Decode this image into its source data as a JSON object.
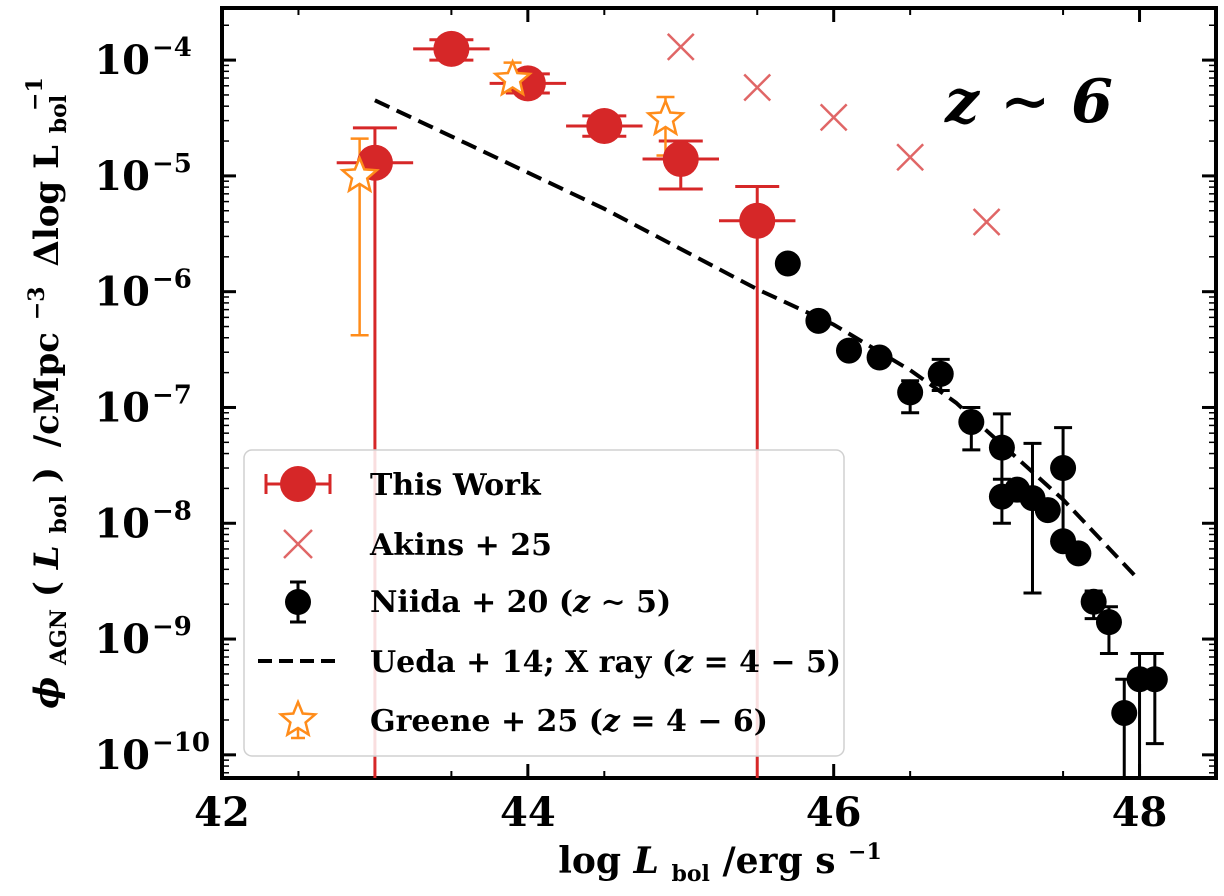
{
  "chart_data": {
    "type": "scatter",
    "xscale": "linear",
    "yscale": "log",
    "xlim": [
      42,
      48.5
    ],
    "ylim_log10": [
      -10.2,
      -3.55
    ],
    "x_ticks": [
      "42",
      "44",
      "46",
      "48"
    ],
    "x_tick_values": [
      42,
      44,
      46,
      48
    ],
    "y_tick_values_log10": [
      -4,
      -5,
      -6,
      -7,
      -8,
      -9,
      -10
    ],
    "y_tick_labels": [
      "10",
      "10",
      "10",
      "10",
      "10",
      "10",
      "10"
    ],
    "y_tick_exponents": [
      "−4",
      "−5",
      "−6",
      "−7",
      "−8",
      "−9",
      "−10"
    ],
    "xlabel_main": "log",
    "xlabel_var": "L",
    "xlabel_sub": "bol",
    "xlabel_unit": "/erg s",
    "xlabel_exp": "−1",
    "ylabel_phi": "ϕ",
    "ylabel_phi_sub": "AGN",
    "ylabel_arg_open": "(",
    "ylabel_arg_var": "L",
    "ylabel_arg_sub": "bol",
    "ylabel_arg_close": ")",
    "ylabel_unit": "/cMpc",
    "ylabel_unit_exp": "−3",
    "ylabel_delta": "Δlog L",
    "ylabel_delta_sub": "bol",
    "ylabel_delta_exp": "−1",
    "annotation": "z ∼ 6",
    "series": [
      {
        "name": "This Work",
        "marker": "circle",
        "color": "#d62728",
        "points": [
          {
            "x": 43.0,
            "y": 1.3e-05,
            "ylo": 1e-11,
            "yhi": 2.6e-05
          },
          {
            "x": 43.5,
            "y": 0.000125,
            "ylo": 0.0001,
            "yhi": 0.00015
          },
          {
            "x": 44.0,
            "y": 6.3e-05,
            "ylo": 5.2e-05,
            "yhi": 7.6e-05
          },
          {
            "x": 44.5,
            "y": 2.7e-05,
            "ylo": 2.2e-05,
            "yhi": 3.3e-05
          },
          {
            "x": 45.0,
            "y": 1.4e-05,
            "ylo": 7.7e-06,
            "yhi": 2e-05
          },
          {
            "x": 45.5,
            "y": 4.1e-06,
            "ylo": 1e-11,
            "yhi": 8.1e-06
          }
        ],
        "xerr": 0.25
      },
      {
        "name": "Akins + 25",
        "marker": "x",
        "color": "#e06666",
        "points": [
          {
            "x": 45.0,
            "y": 0.00013
          },
          {
            "x": 45.5,
            "y": 5.8e-05
          },
          {
            "x": 46.0,
            "y": 3.2e-05
          },
          {
            "x": 46.5,
            "y": 1.45e-05
          },
          {
            "x": 47.0,
            "y": 4e-06
          }
        ]
      },
      {
        "name": "Niida + 20 (z ∼ 5)",
        "marker": "circle",
        "color": "#000000",
        "points": [
          {
            "x": 45.7,
            "y": 1.75e-06
          },
          {
            "x": 45.9,
            "y": 5.6e-07
          },
          {
            "x": 46.1,
            "y": 3.1e-07
          },
          {
            "x": 46.3,
            "y": 2.7e-07
          },
          {
            "x": 46.5,
            "y": 1.35e-07,
            "ylo": 9e-08,
            "yhi": 1.7e-07
          },
          {
            "x": 46.7,
            "y": 1.95e-07,
            "ylo": 1.4e-07,
            "yhi": 2.6e-07
          },
          {
            "x": 46.9,
            "y": 7.5e-08,
            "ylo": 4.3e-08,
            "yhi": 1e-07
          },
          {
            "x": 47.1,
            "y": 4.5e-08,
            "ylo": 1.8e-08,
            "yhi": 8.8e-08
          },
          {
            "x": 47.1,
            "y": 1.7e-08,
            "ylo": 1e-08,
            "yhi": 2.4e-08
          },
          {
            "x": 47.2,
            "y": 1.95e-08
          },
          {
            "x": 47.3,
            "y": 1.65e-08,
            "ylo": 2.5e-09,
            "yhi": 4.9e-08
          },
          {
            "x": 47.4,
            "y": 1.3e-08
          },
          {
            "x": 47.5,
            "y": 3e-08,
            "ylo": 8e-09,
            "yhi": 6.7e-08
          },
          {
            "x": 47.5,
            "y": 7e-09
          },
          {
            "x": 47.6,
            "y": 5.5e-09
          },
          {
            "x": 47.7,
            "y": 2.1e-09,
            "ylo": 1.5e-09,
            "yhi": 2.6e-09
          },
          {
            "x": 47.8,
            "y": 1.4e-09,
            "ylo": 7.5e-10,
            "yhi": 1.9e-09
          },
          {
            "x": 47.9,
            "y": 2.3e-10,
            "ylo": 1e-11,
            "yhi": 4.5e-10
          },
          {
            "x": 48.0,
            "y": 4.5e-10,
            "ylo": 1e-11,
            "yhi": 7.5e-10
          },
          {
            "x": 48.1,
            "y": 4.5e-10,
            "ylo": 1.25e-10,
            "yhi": 7.5e-10
          }
        ]
      },
      {
        "name": "Ueda + 14; X ray (z = 4 − 5)",
        "marker": "dashed-line",
        "color": "#000000",
        "points": [
          {
            "x": 43.0,
            "y": 4.5e-05
          },
          {
            "x": 43.6,
            "y": 1.9e-05
          },
          {
            "x": 44.5,
            "y": 5.2e-06
          },
          {
            "x": 45.5,
            "y": 1.05e-06
          },
          {
            "x": 46.0,
            "y": 5.2e-07
          },
          {
            "x": 46.5,
            "y": 2.1e-07
          },
          {
            "x": 46.8,
            "y": 1.1e-07
          },
          {
            "x": 47.0,
            "y": 6.3e-08
          },
          {
            "x": 47.5,
            "y": 1.6e-08
          },
          {
            "x": 48.0,
            "y": 3.2e-09
          }
        ]
      },
      {
        "name": "Greene + 25 (z = 4 − 6)",
        "marker": "star",
        "color": "#ff8c1a",
        "points": [
          {
            "x": 42.9,
            "y": 1e-05,
            "ylo": 4.2e-07,
            "yhi": 2.1e-05
          },
          {
            "x": 43.9,
            "y": 6.8e-05,
            "ylo": 5.4e-05,
            "yhi": 9.5e-05
          },
          {
            "x": 44.9,
            "y": 3.1e-05,
            "ylo": 1.5e-05,
            "yhi": 4.8e-05
          }
        ]
      }
    ],
    "legend": {
      "placement": "lower-left",
      "entries": [
        {
          "label": "This Work"
        },
        {
          "label_main": "Akins",
          "label_rest": " + 25"
        },
        {
          "label_main": "Niida + 20 (",
          "label_var": "z",
          "label_rest": " ∼ 5)"
        },
        {
          "label_main": "Ueda + 14; X ray (",
          "label_var": "z",
          "label_rest": " = 4 − 5)"
        },
        {
          "label_main": "Greene + 25 (",
          "label_var": "z",
          "label_rest": " = 4 − 6)"
        }
      ]
    }
  }
}
